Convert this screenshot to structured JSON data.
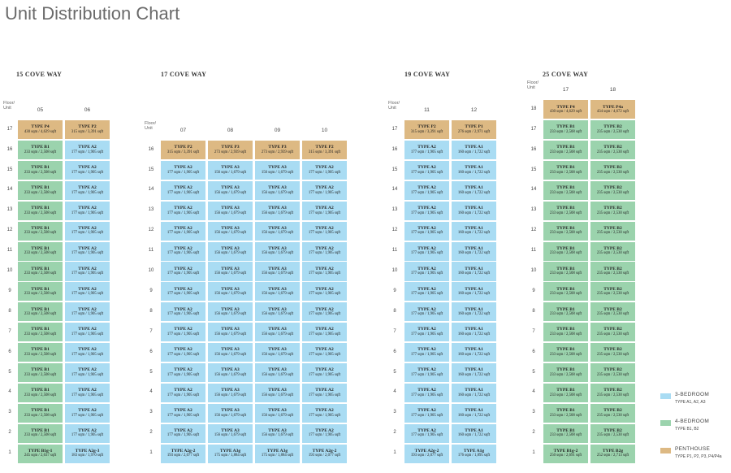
{
  "title": "Unit Distribution Chart",
  "floor_unit_label": "Floor/\nUnit",
  "colors": {
    "three_bedroom": "#a9dcf3",
    "four_bedroom": "#9bd3ad",
    "penthouse": "#ddb983"
  },
  "types": {
    "B1": {
      "type": "TYPE B1",
      "size": "233 sqm / 2,508 sqft",
      "cls": "t4"
    },
    "B1g1": {
      "type": "TYPE B1g-1",
      "size": "245 sqm / 2,637 sqft",
      "cls": "t4"
    },
    "B1g2": {
      "type": "TYPE B1g-2",
      "size": "250 sqm / 2,691 sqft",
      "cls": "t4"
    },
    "B2": {
      "type": "TYPE B2",
      "size": "235 sqm / 2,530 sqft",
      "cls": "t4"
    },
    "B2g": {
      "type": "TYPE B2g",
      "size": "252 sqm / 2,713 sqft",
      "cls": "t4"
    },
    "A2": {
      "type": "TYPE A2",
      "size": "177 sqm / 1,905 sqft",
      "cls": "t3"
    },
    "A2g2": {
      "type": "TYPE A2g-2",
      "size": "193 sqm / 2,077 sqft",
      "cls": "t3"
    },
    "A2g3": {
      "type": "TYPE A2g-3",
      "size": "183 sqm / 1,970 sqft",
      "cls": "t3"
    },
    "A3": {
      "type": "TYPE A3",
      "size": "156 sqm / 1,679 sqft",
      "cls": "t3"
    },
    "A3g": {
      "type": "TYPE A3g",
      "size": "175 sqm / 1,884 sqft",
      "cls": "t3"
    },
    "A1": {
      "type": "TYPE A1",
      "size": "160 sqm / 1,722 sqft",
      "cls": "t3"
    },
    "A1g": {
      "type": "TYPE A1g",
      "size": "176 sqm / 1,895 sqft",
      "cls": "t3"
    },
    "P4": {
      "type": "TYPE P4",
      "size": "430 sqm / 4,629 sqft",
      "cls": "tp"
    },
    "P2_15": {
      "type": "TYPE P2",
      "size": "315 sqm / 3,391 sqft",
      "cls": "tp"
    },
    "P2": {
      "type": "TYPE P2",
      "size": "315 sqm / 3,391 sqft",
      "cls": "tp"
    },
    "P3": {
      "type": "TYPE P3",
      "size": "273 sqm / 2,939 sqft",
      "cls": "tp"
    },
    "P1": {
      "type": "TYPE P1",
      "size": "276 sqm / 2,971 sqft",
      "cls": "tp"
    },
    "P4_25": {
      "type": "TYPE P4",
      "size": "430 sqm / 4,629 sqft",
      "cls": "tp"
    },
    "P4a": {
      "type": "TYPE P4a",
      "size": "434 sqm / 4,672 sqft",
      "cls": "tp"
    }
  },
  "buildings": [
    {
      "name": "15 COVE WAY",
      "units": [
        "05",
        "06"
      ],
      "top_floor": 17,
      "columns": [
        {
          "top": "P4",
          "mid": "B1",
          "ground": "B1g1"
        },
        {
          "top": "P2_15",
          "mid": "A2",
          "ground": "A2g3"
        }
      ]
    },
    {
      "name": "17 COVE WAY",
      "units": [
        "07",
        "08",
        "09",
        "10"
      ],
      "top_floor": 16,
      "columns": [
        {
          "top": "P2",
          "mid": "A2",
          "ground": "A2g2"
        },
        {
          "top": "P3",
          "mid": "A3",
          "ground": "A3g"
        },
        {
          "top": "P3",
          "mid": "A3",
          "ground": "A3g"
        },
        {
          "top": "P2",
          "mid": "A2",
          "ground": "A2g2"
        }
      ]
    },
    {
      "name": "19 COVE WAY",
      "units": [
        "11",
        "12"
      ],
      "top_floor": 17,
      "columns": [
        {
          "top": "P2",
          "mid": "A2",
          "ground": "A2g2"
        },
        {
          "top": "P1",
          "mid": "A1",
          "ground": "A1g"
        }
      ]
    },
    {
      "name": "25 COVE WAY",
      "units": [
        "17",
        "18"
      ],
      "top_floor": 18,
      "columns": [
        {
          "top": "P4_25",
          "mid": "B1",
          "ground": "B1g2"
        },
        {
          "top": "P4a",
          "mid": "B2",
          "ground": "B2g"
        }
      ]
    }
  ],
  "legend": [
    {
      "label": "3-BEDROOM",
      "sub": "TYPE A1, A2, A3",
      "color": "#a9dcf3"
    },
    {
      "label": "4-BEDROOM",
      "sub": "TYPE B1, B2",
      "color": "#9bd3ad"
    },
    {
      "label": "PENTHOUSE",
      "sub": "TYPE P1, P2, P3, P4/P4a",
      "color": "#ddb983"
    }
  ]
}
